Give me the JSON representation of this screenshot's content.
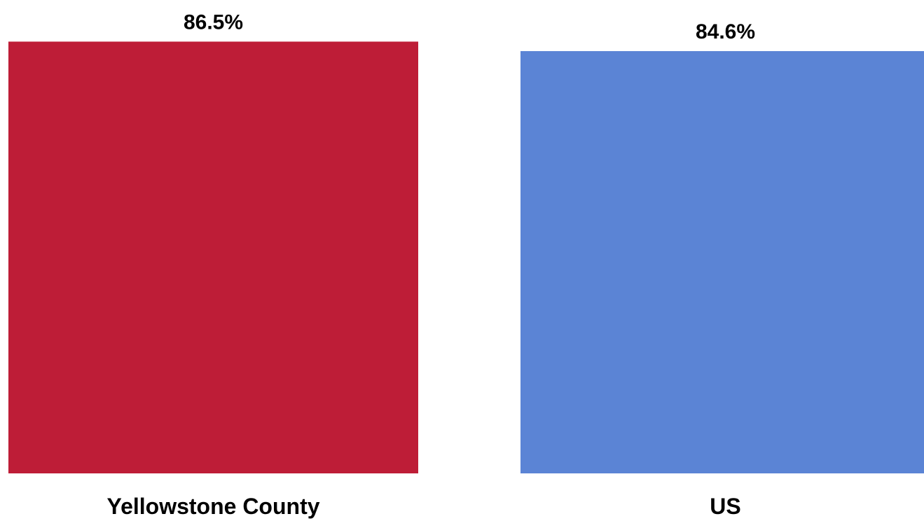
{
  "chart_data": {
    "type": "bar",
    "title": "",
    "xlabel": "",
    "ylabel": "",
    "categories": [
      "Yellowstone County",
      "US"
    ],
    "values": [
      86.5,
      84.6
    ],
    "data_labels": [
      "86.5%",
      "84.6%"
    ],
    "colors": [
      "#be1d37",
      "#5b84d5"
    ],
    "grid": false,
    "legend": "none",
    "value_axis_visible": false
  }
}
